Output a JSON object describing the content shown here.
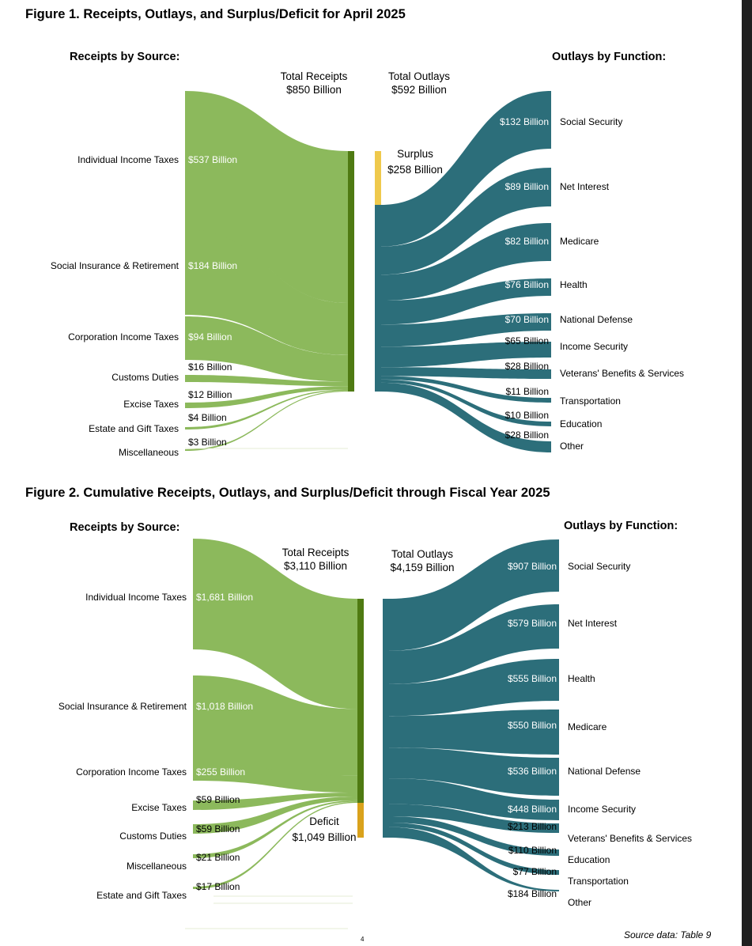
{
  "colors": {
    "receipts": "#8cb95c",
    "receipts_bar": "#4f7a12",
    "outlays": "#2c6e7a",
    "surplus": "#efc94c",
    "deficit": "#d9a21c"
  },
  "page_number": "4",
  "source_note": "Source data: Table 9",
  "chart_data": [
    {
      "type": "sankey",
      "title": "Figure 1. Receipts, Outlays, and Surplus/Deficit for April 2025",
      "receipts_heading": "Receipts by Source:",
      "outlays_heading": "Outlays by Function:",
      "total_receipts_label": "Total Receipts",
      "total_receipts_value": "$850 Billion",
      "total_outlays_label": "Total Outlays",
      "total_outlays_value": "$592 Billion",
      "balance_label": "Surplus",
      "balance_value": "$258 Billion",
      "balance_type": "surplus",
      "receipts": [
        {
          "name": "Individual Income Taxes",
          "value": 537,
          "label": "$537 Billion"
        },
        {
          "name": "Social Insurance & Retirement",
          "value": 184,
          "label": "$184 Billion"
        },
        {
          "name": "Corporation Income Taxes",
          "value": 94,
          "label": "$94 Billion"
        },
        {
          "name": "Customs Duties",
          "value": 16,
          "label": "$16 Billion"
        },
        {
          "name": "Excise Taxes",
          "value": 12,
          "label": "$12 Billion"
        },
        {
          "name": "Estate and Gift Taxes",
          "value": 4,
          "label": "$4 Billion"
        },
        {
          "name": "Miscellaneous",
          "value": 3,
          "label": "$3 Billion"
        }
      ],
      "outlays": [
        {
          "name": "Social Security",
          "value": 132,
          "label": "$132 Billion"
        },
        {
          "name": "Net Interest",
          "value": 89,
          "label": "$89 Billion"
        },
        {
          "name": "Medicare",
          "value": 82,
          "label": "$82 Billion"
        },
        {
          "name": "Health",
          "value": 76,
          "label": "$76 Billion"
        },
        {
          "name": "National Defense",
          "value": 70,
          "label": "$70 Billion"
        },
        {
          "name": "Income Security",
          "value": 65,
          "label": "$65 Billion"
        },
        {
          "name": "Veterans' Benefits & Services",
          "value": 28,
          "label": "$28 Billion"
        },
        {
          "name": "Transportation",
          "value": 11,
          "label": "$11 Billion"
        },
        {
          "name": "Education",
          "value": 10,
          "label": "$10 Billion"
        },
        {
          "name": "Other",
          "value": 28,
          "label": "$28 Billion"
        }
      ]
    },
    {
      "type": "sankey",
      "title": "Figure 2. Cumulative Receipts, Outlays, and Surplus/Deficit through Fiscal Year 2025",
      "receipts_heading": "Receipts by Source:",
      "outlays_heading": "Outlays by Function:",
      "total_receipts_label": "Total Receipts",
      "total_receipts_value": "$3,110 Billion",
      "total_outlays_label": "Total Outlays",
      "total_outlays_value": "$4,159 Billion",
      "balance_label": "Deficit",
      "balance_value": "$1,049 Billion",
      "balance_type": "deficit",
      "receipts": [
        {
          "name": "Individual Income Taxes",
          "value": 1681,
          "label": "$1,681 Billion"
        },
        {
          "name": "Social Insurance & Retirement",
          "value": 1018,
          "label": "$1,018 Billion"
        },
        {
          "name": "Corporation Income Taxes",
          "value": 255,
          "label": "$255 Billion"
        },
        {
          "name": "Excise Taxes",
          "value": 59,
          "label": "$59 Billion"
        },
        {
          "name": "Customs Duties",
          "value": 59,
          "label": "$59 Billion"
        },
        {
          "name": "Miscellaneous",
          "value": 21,
          "label": "$21 Billion"
        },
        {
          "name": "Estate and Gift Taxes",
          "value": 17,
          "label": "$17 Billion"
        }
      ],
      "outlays": [
        {
          "name": "Social Security",
          "value": 907,
          "label": "$907 Billion"
        },
        {
          "name": "Net Interest",
          "value": 579,
          "label": "$579 Billion"
        },
        {
          "name": "Health",
          "value": 555,
          "label": "$555 Billion"
        },
        {
          "name": "Medicare",
          "value": 550,
          "label": "$550 Billion"
        },
        {
          "name": "National Defense",
          "value": 536,
          "label": "$536 Billion"
        },
        {
          "name": "Income Security",
          "value": 448,
          "label": "$448 Billion"
        },
        {
          "name": "Veterans' Benefits & Services",
          "value": 213,
          "label": "$213 Billion"
        },
        {
          "name": "Education",
          "value": 110,
          "label": "$110 Billion"
        },
        {
          "name": "Transportation",
          "value": 77,
          "label": "$77 Billion"
        },
        {
          "name": "Other",
          "value": 184,
          "label": "$184 Billion"
        }
      ]
    }
  ]
}
